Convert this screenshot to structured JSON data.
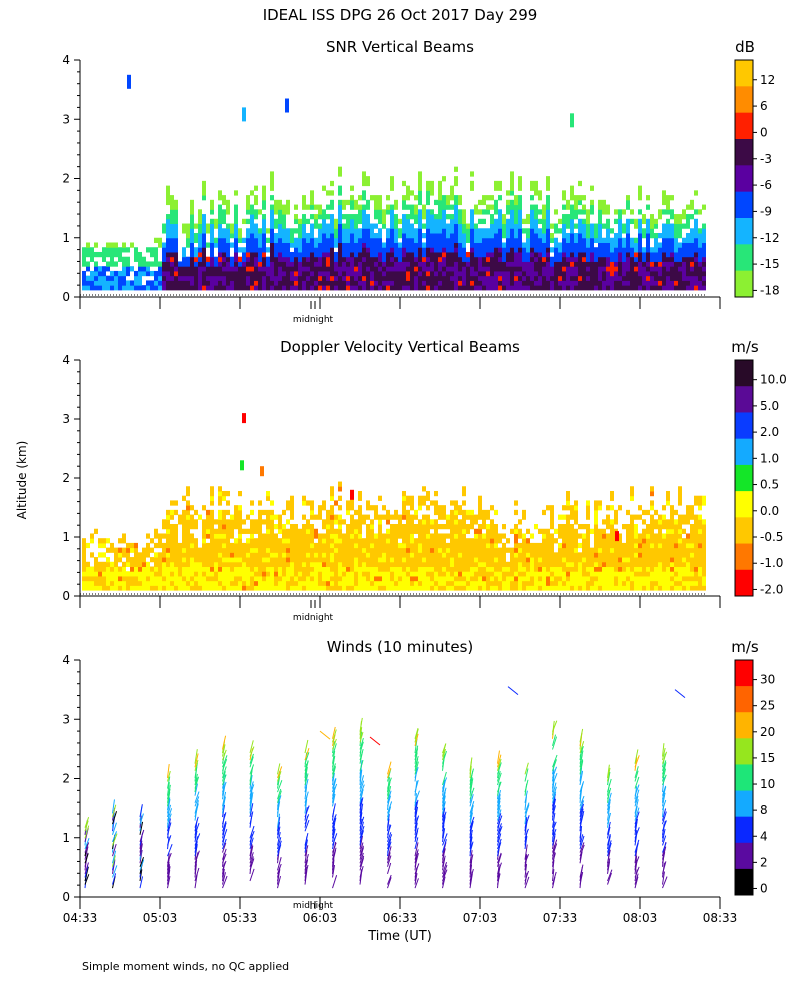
{
  "figure": {
    "title": "IDEAL ISS DPG  26 Oct 2017 Day 299",
    "ylabel": "Altitude (km)",
    "xlabel": "Time (UT)",
    "footnote": "Simple moment winds, no QC applied",
    "midnight_label": "midnight"
  },
  "chart_data": [
    {
      "type": "heatmap",
      "title": "SNR Vertical Beams",
      "colorbar_unit": "dB",
      "colorbar_ticks": [
        "12",
        "6",
        "0",
        "-3",
        "-6",
        "-9",
        "-12",
        "-15",
        "-18"
      ],
      "colorbar_colors": [
        "#ffc800",
        "#ff8c00",
        "#ff2000",
        "#3c0a46",
        "#5a00a0",
        "#0046ff",
        "#14b4ff",
        "#28e678",
        "#8cf032"
      ],
      "ylim": [
        0,
        4
      ],
      "yticks": [
        "0",
        "1",
        "2",
        "3",
        "4"
      ]
    },
    {
      "type": "heatmap",
      "title": "Doppler Velocity Vertical Beams",
      "colorbar_unit": "m/s",
      "colorbar_ticks": [
        "10.0",
        "5.0",
        "2.0",
        "1.0",
        "0.5",
        "0.0",
        "-0.5",
        "-1.0",
        "-2.0"
      ],
      "colorbar_colors": [
        "#280a28",
        "#5a0a96",
        "#0a3cff",
        "#14aaff",
        "#14e628",
        "#ffff00",
        "#ffc800",
        "#ff7800",
        "#ff0000"
      ],
      "ylim": [
        0,
        4
      ],
      "yticks": [
        "0",
        "1",
        "2",
        "3",
        "4"
      ]
    },
    {
      "type": "scatter",
      "title": "Winds (10 minutes)",
      "colorbar_unit": "m/s",
      "colorbar_ticks": [
        "30",
        "25",
        "20",
        "15",
        "10",
        "8",
        "4",
        "2",
        "0"
      ],
      "colorbar_colors": [
        "#ff0000",
        "#ff6400",
        "#ffb400",
        "#96e61e",
        "#1ee678",
        "#14aaff",
        "#0a28ff",
        "#5a0aa0",
        "#000000"
      ],
      "ylim": [
        0,
        4
      ],
      "yticks": [
        "0",
        "1",
        "2",
        "3",
        "4"
      ],
      "xticks": [
        "04:33",
        "05:03",
        "05:33",
        "06:03",
        "06:33",
        "07:03",
        "07:33",
        "08:03",
        "08:33"
      ]
    }
  ]
}
